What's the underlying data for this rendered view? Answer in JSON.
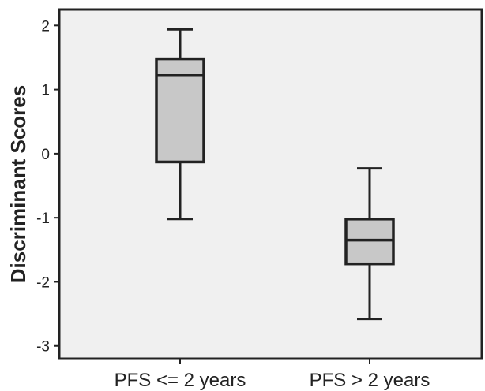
{
  "chart_data": {
    "type": "boxplot",
    "title": "",
    "xlabel": "",
    "ylabel": "Discriminant Scores",
    "ylim": [
      -3.2,
      2.25
    ],
    "yticks": [
      2,
      1,
      0,
      -1,
      -2,
      -3
    ],
    "ytick_labels": [
      "2",
      "1",
      "0",
      "-1",
      "-2",
      "-3"
    ],
    "categories": [
      "PFS <= 2 years",
      "PFS > 2 years"
    ],
    "boxes": [
      {
        "min": -1.02,
        "q1": -0.13,
        "median": 1.22,
        "q3": 1.48,
        "max": 1.94
      },
      {
        "min": -2.58,
        "q1": -1.72,
        "median": -1.35,
        "q3": -1.02,
        "max": -0.23
      }
    ],
    "grid": false,
    "legend": false,
    "colors": {
      "plot_background": "#f0f0f0",
      "box_fill": "#c8c8c8",
      "stroke": "#222222"
    }
  }
}
